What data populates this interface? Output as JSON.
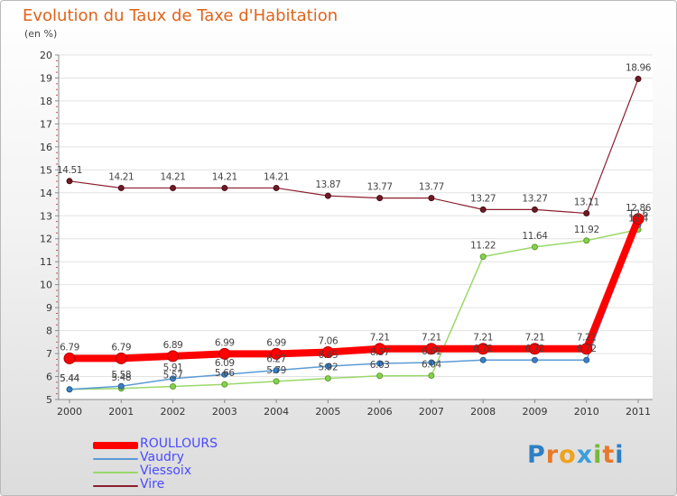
{
  "title": "Evolution du Taux de Taxe d'Habitation",
  "unit": "(en %)",
  "logo": "Proxiti",
  "chart_data": {
    "type": "line",
    "title": "Evolution du Taux de Taxe d'Habitation",
    "ylabel": "(en %)",
    "xlabel": "",
    "x": [
      "2000",
      "2001",
      "2002",
      "2003",
      "2004",
      "2005",
      "2006",
      "2007",
      "2008",
      "2009",
      "2010",
      "2011"
    ],
    "ylim": [
      5,
      20
    ],
    "yticks": [
      5,
      6,
      7,
      8,
      9,
      10,
      11,
      12,
      13,
      14,
      15,
      16,
      17,
      18,
      19,
      20
    ],
    "grid": "horizontal",
    "legend": "bottom-left",
    "series": [
      {
        "name": "ROULLOURS",
        "color": "#ff0000",
        "values": [
          6.79,
          6.79,
          6.89,
          6.99,
          6.99,
          7.06,
          7.21,
          7.21,
          7.21,
          7.21,
          7.21,
          12.86
        ],
        "labels": [
          "6.79",
          "6.79",
          "6.89",
          "6.99",
          "6.99",
          "7.06",
          "7.21",
          "7.21",
          "7.21",
          "7.21",
          "7.21",
          "12.86"
        ]
      },
      {
        "name": "Vaudry",
        "color": "#5b9bd5",
        "values": [
          5.44,
          5.58,
          5.91,
          6.09,
          6.27,
          6.45,
          6.57,
          6.61,
          6.72,
          6.72,
          6.72,
          12.6
        ],
        "labels": [
          "5.44",
          "5.58",
          "5.91",
          "6.09",
          "6.27",
          "6.45",
          "6.57",
          "6.61",
          "6.72",
          "6.72",
          "6.72",
          "12.6"
        ]
      },
      {
        "name": "Viessoix",
        "color": "#9ad86a",
        "values": [
          5.44,
          5.48,
          5.57,
          5.66,
          5.79,
          5.92,
          6.03,
          6.04,
          11.22,
          11.64,
          11.92,
          12.4
        ],
        "labels": [
          "5.44",
          "5.48",
          "5.57",
          "5.66",
          "5.79",
          "5.92",
          "6.03",
          "6.04",
          "11.22",
          "11.64",
          "11.92",
          "12.4"
        ]
      },
      {
        "name": "Vire",
        "color": "#8b1e2e",
        "values": [
          14.51,
          14.21,
          14.21,
          14.21,
          14.21,
          13.87,
          13.77,
          13.77,
          13.27,
          13.27,
          13.11,
          18.96
        ],
        "labels": [
          "14.51",
          "14.21",
          "14.21",
          "14.21",
          "14.21",
          "13.87",
          "13.77",
          "13.77",
          "13.27",
          "13.27",
          "13.11",
          "18.96"
        ]
      }
    ]
  }
}
